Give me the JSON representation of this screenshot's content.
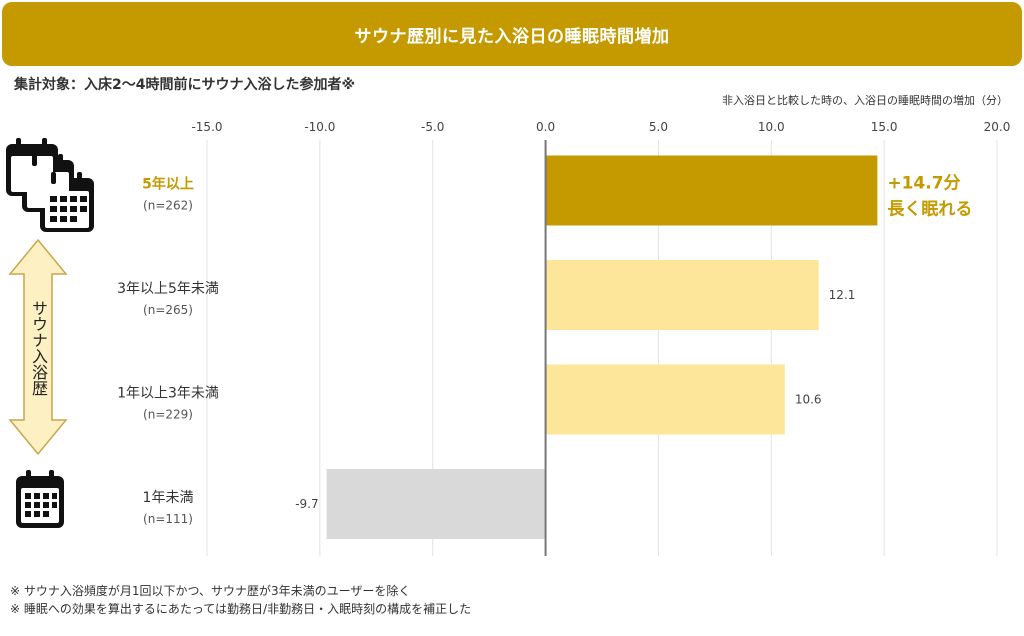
{
  "header": {
    "title": "サウナ歴別に見た入浴日の睡眠時間増加",
    "subtitle": "集計対象：入床2〜4時間前にサウナ入浴した参加者※",
    "unit_note": "非入浴日と比較した時の、入浴日の睡眠時間の増加（分）"
  },
  "colors": {
    "header_bg": "#c49a00",
    "highlight_bar": "#c49a00",
    "light_bar": "#fde699",
    "negative_bar": "#d9d9d9",
    "accent_text": "#c49a00",
    "arrow_fill": "#fdf0c2",
    "arrow_stroke": "#c9a64a"
  },
  "side_label": "サウナ入浴歴",
  "icons": {
    "top": "stacked-calendars-icon",
    "bottom": "calendar-icon",
    "arrow": "double-arrow-icon"
  },
  "chart_data": {
    "type": "bar",
    "orientation": "horizontal",
    "categories": [
      "5年以上",
      "3年以上5年未満",
      "1年以上3年未満",
      "1年未満"
    ],
    "sample_sizes": [
      "(n=262)",
      "(n=265)",
      "(n=229)",
      "(n=111)"
    ],
    "values": [
      14.7,
      12.1,
      10.6,
      -9.7
    ],
    "value_labels": [
      "",
      "12.1",
      "10.6",
      "-9.7"
    ],
    "highlight": {
      "index": 0,
      "line1": "+14.7分",
      "line2": "長く眠れる"
    },
    "xlim": [
      -15,
      20
    ],
    "xticks": [
      "-15.0",
      "-10.0",
      "-5.0",
      "0.0",
      "5.0",
      "10.0",
      "15.0",
      "20.0"
    ],
    "xtick_values": [
      -15,
      -10,
      -5,
      0,
      5,
      10,
      15,
      20
    ],
    "grid": true
  },
  "footnotes": [
    "※ サウナ入浴頻度が月1回以下かつ、サウナ歴が3年未満のユーザーを除く",
    "※ 睡眠への効果を算出するにあたっては勤務日/非勤務日・入眠時刻の構成を補正した"
  ]
}
